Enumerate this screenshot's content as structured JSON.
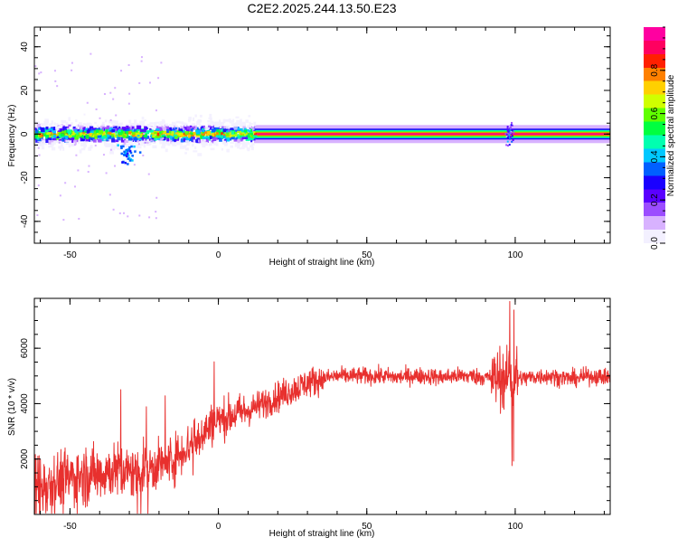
{
  "title": "C2E2.2025.244.13.50.E23",
  "colors": {
    "snr_line": "#e8302e",
    "bg": "#ffffff",
    "axis": "#000000"
  },
  "colormap": [
    "#f3f0ff",
    "#d8b2ff",
    "#9b4dff",
    "#5a00ff",
    "#1a00ff",
    "#0060ff",
    "#00c8ff",
    "#00ffb0",
    "#00ff40",
    "#60ff00",
    "#d0ff00",
    "#ffd000",
    "#ff8000",
    "#ff2000",
    "#ff0060",
    "#ff00a0"
  ],
  "chart_data": [
    {
      "type": "heatmap",
      "xlabel": "Height of straight line (km)",
      "ylabel": "Frequency (Hz)",
      "xlim": [
        -62,
        132
      ],
      "ylim": [
        -50,
        49
      ],
      "xticks": [
        -50,
        0,
        50,
        100
      ],
      "yticks": [
        -40,
        -20,
        0,
        20,
        40
      ],
      "colorbar": {
        "label": "Normalized spectral amplitude",
        "range": [
          0,
          1
        ],
        "ticks": [
          0.0,
          0.2,
          0.4,
          0.6,
          0.8
        ]
      },
      "spectral_band": {
        "center_hz": 0,
        "strong_from_km": 12,
        "strong_to_km": 132,
        "noise_extends_to_km": 12
      }
    },
    {
      "type": "line",
      "xlabel": "Height of straight line (km)",
      "ylabel": "SNR (10 * v/v)",
      "xlim": [
        -62,
        132
      ],
      "ylim": [
        0,
        7800
      ],
      "xticks": [
        -50,
        0,
        50,
        100
      ],
      "yticks": [
        2000,
        4000,
        6000
      ],
      "series": [
        {
          "name": "SNR",
          "x": [
            -62,
            -55,
            -50,
            -45,
            -40,
            -35,
            -30,
            -25,
            -20,
            -15,
            -10,
            -5,
            0,
            5,
            10,
            15,
            20,
            25,
            30,
            35,
            40,
            45,
            50,
            55,
            60,
            65,
            70,
            75,
            80,
            85,
            90,
            93,
            95,
            97,
            98,
            99,
            100,
            102,
            105,
            110,
            115,
            120,
            125,
            132
          ],
          "values": [
            1000,
            1200,
            1300,
            1400,
            1500,
            1600,
            1500,
            1650,
            1750,
            2000,
            2500,
            3000,
            3400,
            3600,
            3750,
            4000,
            4250,
            4500,
            4750,
            4900,
            5000,
            5000,
            5000,
            5000,
            4950,
            5000,
            5000,
            4950,
            5000,
            5000,
            4950,
            4900,
            5000,
            4800,
            5200,
            4500,
            5000,
            4900,
            4950,
            5000,
            4950,
            4900,
            5000,
            4950
          ]
        }
      ]
    }
  ]
}
